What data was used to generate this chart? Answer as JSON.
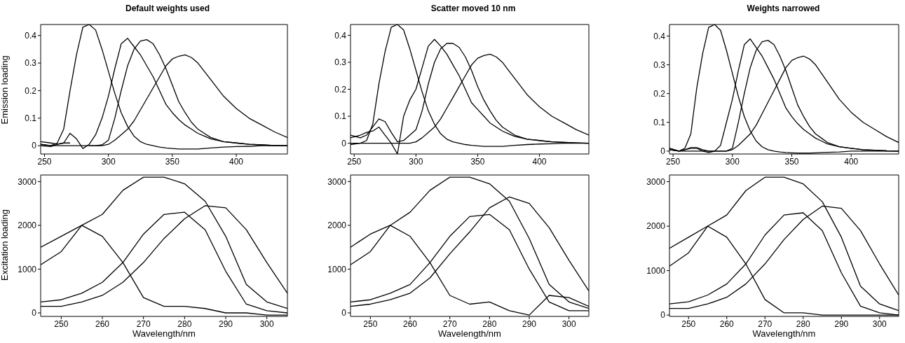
{
  "chart_data": [
    {
      "type": "line",
      "title": "Default weights used",
      "ylabel": "Emission loading",
      "x": [
        247,
        255,
        260,
        265,
        270,
        275,
        280,
        285,
        290,
        295,
        300,
        305,
        310,
        315,
        320,
        325,
        330,
        335,
        340,
        345,
        350,
        355,
        360,
        365,
        370,
        375,
        380,
        390,
        400,
        410,
        420,
        430,
        440
      ],
      "xlim": [
        247,
        440
      ],
      "ylim": [
        -0.03,
        0.44
      ],
      "xticks": [
        250,
        300,
        350,
        400
      ],
      "yticks": [
        0,
        0.1,
        0.2,
        0.3,
        0.4
      ],
      "series": [
        {
          "color": "#000000",
          "values": [
            0.005,
            0,
            0.01,
            0.06,
            0.2,
            0.33,
            0.43,
            0.44,
            0.42,
            0.35,
            0.27,
            0.19,
            0.12,
            0.07,
            0.035,
            0.015,
            0.005,
            0,
            -0.005,
            -0.008,
            -0.01,
            -0.012,
            -0.012,
            -0.012,
            -0.012,
            -0.01,
            -0.008,
            -0.005,
            -0.003,
            -0.002,
            0,
            0,
            0
          ]
        },
        {
          "color": "#000000",
          "values": [
            0.015,
            0.01,
            0.005,
            0.01,
            0.045,
            0.025,
            -0.01,
            0.005,
            0.04,
            0.1,
            0.18,
            0.28,
            0.37,
            0.39,
            0.36,
            0.33,
            0.29,
            0.25,
            0.2,
            0.15,
            0.12,
            0.095,
            0.075,
            0.06,
            0.045,
            0.035,
            0.025,
            0.015,
            0.01,
            0.005,
            0.003,
            0.001,
            0
          ]
        },
        {
          "color": "#000000",
          "values": [
            0,
            -0.003,
            0.005,
            0.01,
            0.01,
            null,
            null,
            0,
            0,
            0.003,
            0.02,
            0.1,
            0.2,
            0.29,
            0.35,
            0.38,
            0.385,
            0.37,
            0.33,
            0.28,
            0.22,
            0.16,
            0.12,
            0.085,
            0.06,
            0.045,
            0.03,
            0.015,
            0.01,
            0.005,
            0.003,
            0.001,
            0
          ]
        },
        {
          "color": "#000000",
          "values": [
            0.005,
            0,
            0,
            0,
            0,
            0,
            0,
            0,
            0,
            0,
            0.005,
            0.02,
            0.04,
            0.06,
            0.09,
            0.13,
            0.17,
            0.21,
            0.25,
            0.29,
            0.315,
            0.325,
            0.33,
            0.32,
            0.3,
            0.27,
            0.24,
            0.18,
            0.135,
            0.1,
            0.075,
            0.05,
            0.03
          ]
        }
      ]
    },
    {
      "type": "line",
      "title": "Scatter moved 10 nm",
      "x": [
        247,
        255,
        260,
        265,
        270,
        275,
        280,
        285,
        290,
        295,
        300,
        305,
        310,
        315,
        320,
        325,
        330,
        335,
        340,
        345,
        350,
        355,
        360,
        365,
        370,
        375,
        380,
        390,
        400,
        410,
        420,
        430,
        440
      ],
      "xlim": [
        247,
        440
      ],
      "ylim": [
        -0.04,
        0.44
      ],
      "xticks": [
        250,
        300,
        350,
        400
      ],
      "yticks": [
        0,
        0.1,
        0.2,
        0.3,
        0.4
      ],
      "series": [
        {
          "color": "#000000",
          "values": [
            -0.005,
            0,
            0.01,
            0.07,
            0.22,
            0.34,
            0.43,
            0.44,
            0.42,
            0.35,
            0.27,
            0.19,
            0.12,
            0.07,
            0.035,
            0.015,
            0.005,
            0,
            -0.005,
            -0.008,
            -0.01,
            -0.012,
            -0.012,
            -0.012,
            -0.012,
            -0.01,
            -0.008,
            -0.005,
            -0.003,
            -0.002,
            0,
            0,
            0
          ]
        },
        {
          "color": "#000000",
          "values": [
            0.02,
            0.03,
            0.04,
            0.045,
            0.06,
            0.03,
            0,
            -0.04,
            0.1,
            0.16,
            0.2,
            0.28,
            0.36,
            0.385,
            0.36,
            0.33,
            0.29,
            0.25,
            0.2,
            0.15,
            0.125,
            0.1,
            0.075,
            0.06,
            0.045,
            0.035,
            0.025,
            0.015,
            0.01,
            0.005,
            0.003,
            0.001,
            0
          ]
        },
        {
          "color": "#000000",
          "values": [
            0.03,
            0.02,
            0.03,
            0.06,
            0.09,
            0.08,
            0.04,
            0.005,
            0.01,
            0.03,
            0.05,
            0.12,
            0.22,
            0.3,
            0.35,
            0.37,
            0.37,
            0.355,
            0.32,
            0.27,
            0.21,
            0.16,
            0.12,
            0.085,
            0.06,
            0.045,
            0.03,
            0.015,
            0.01,
            0.005,
            0.003,
            0.001,
            0
          ]
        },
        {
          "color": "#000000",
          "values": [
            0,
            0,
            0,
            0,
            0,
            0,
            0,
            0,
            0,
            0,
            0.005,
            0.02,
            0.04,
            0.06,
            0.09,
            0.13,
            0.17,
            0.21,
            0.25,
            0.29,
            0.315,
            0.325,
            0.33,
            0.32,
            0.3,
            0.27,
            0.24,
            0.18,
            0.135,
            0.1,
            0.075,
            0.05,
            0.03
          ]
        }
      ]
    },
    {
      "type": "line",
      "title": "Weights narrowed",
      "x": [
        247,
        255,
        260,
        265,
        270,
        275,
        280,
        285,
        290,
        295,
        300,
        305,
        310,
        315,
        320,
        325,
        330,
        335,
        340,
        345,
        350,
        355,
        360,
        365,
        370,
        375,
        380,
        390,
        400,
        410,
        420,
        430,
        440
      ],
      "xlim": [
        247,
        440
      ],
      "ylim": [
        -0.01,
        0.44
      ],
      "xticks": [
        250,
        300,
        350,
        400
      ],
      "yticks": [
        0,
        0.1,
        0.2,
        0.3,
        0.4
      ],
      "series": [
        {
          "color": "#000000",
          "values": [
            0.005,
            0,
            0.01,
            0.06,
            0.22,
            0.34,
            0.43,
            0.44,
            0.42,
            0.35,
            0.27,
            0.19,
            0.12,
            0.07,
            0.035,
            0.015,
            0.005,
            0,
            -0.003,
            -0.005,
            -0.006,
            -0.007,
            -0.007,
            -0.007,
            -0.006,
            -0.005,
            -0.004,
            -0.003,
            0,
            0,
            0,
            0,
            0
          ]
        },
        {
          "color": "#000000",
          "values": [
            0.01,
            0,
            0.005,
            0.012,
            0.012,
            0.005,
            0,
            0,
            0.02,
            0.1,
            0.18,
            0.28,
            0.37,
            0.39,
            0.36,
            0.33,
            0.29,
            0.25,
            0.2,
            0.15,
            0.12,
            0.095,
            0.075,
            0.06,
            0.045,
            0.035,
            0.025,
            0.015,
            0.01,
            0.005,
            0.003,
            0.001,
            0
          ]
        },
        {
          "color": "#000000",
          "values": [
            0.01,
            0,
            0.005,
            0.01,
            0.01,
            0,
            -0.005,
            0,
            0,
            0,
            0.01,
            0.1,
            0.2,
            0.29,
            0.35,
            0.38,
            0.385,
            0.37,
            0.33,
            0.28,
            0.22,
            0.16,
            0.12,
            0.085,
            0.06,
            0.045,
            0.03,
            0.015,
            0.01,
            0.005,
            0.003,
            0.001,
            0
          ]
        },
        {
          "color": "#000000",
          "values": [
            0.005,
            0,
            0,
            0,
            0,
            0,
            0,
            0,
            0,
            0,
            0.005,
            0.02,
            0.04,
            0.06,
            0.09,
            0.13,
            0.17,
            0.21,
            0.25,
            0.29,
            0.315,
            0.325,
            0.33,
            0.32,
            0.3,
            0.27,
            0.24,
            0.18,
            0.135,
            0.1,
            0.075,
            0.05,
            0.03
          ]
        }
      ]
    },
    {
      "type": "line",
      "ylabel": "Excitation loading",
      "xlabel": "Wavelength/nm",
      "x": [
        245,
        250,
        255,
        260,
        265,
        270,
        275,
        280,
        285,
        290,
        295,
        300,
        305
      ],
      "xlim": [
        245,
        305
      ],
      "ylim": [
        -80,
        3150
      ],
      "xticks": [
        250,
        260,
        270,
        280,
        290,
        300
      ],
      "yticks": [
        0,
        1000,
        2000,
        3000
      ],
      "series": [
        {
          "color": "#000000",
          "values": [
            1500,
            1750,
            2000,
            2250,
            2800,
            3100,
            3100,
            2950,
            2550,
            1750,
            650,
            250,
            100
          ]
        },
        {
          "color": "#000000",
          "values": [
            1100,
            1400,
            2000,
            1750,
            1150,
            350,
            150,
            150,
            100,
            0,
            0,
            -50,
            -50
          ]
        },
        {
          "color": "#000000",
          "values": [
            250,
            300,
            450,
            700,
            1150,
            1800,
            2250,
            2300,
            1900,
            950,
            200,
            50,
            0
          ]
        },
        {
          "color": "#000000",
          "values": [
            150,
            150,
            250,
            400,
            700,
            1150,
            1700,
            2150,
            2450,
            2400,
            1900,
            1150,
            450
          ]
        }
      ]
    },
    {
      "type": "line",
      "xlabel": "Wavelength/nm",
      "x": [
        245,
        250,
        255,
        260,
        265,
        270,
        275,
        280,
        285,
        290,
        295,
        300,
        305
      ],
      "xlim": [
        245,
        305
      ],
      "ylim": [
        -80,
        3150
      ],
      "xticks": [
        250,
        260,
        270,
        280,
        290,
        300
      ],
      "yticks": [
        0,
        1000,
        2000,
        3000
      ],
      "series": [
        {
          "color": "#000000",
          "values": [
            1500,
            1800,
            2000,
            2300,
            2800,
            3100,
            3100,
            2950,
            2550,
            1700,
            650,
            250,
            100
          ]
        },
        {
          "color": "#000000",
          "values": [
            1100,
            1400,
            2000,
            1750,
            1150,
            400,
            200,
            250,
            50,
            -50,
            400,
            350,
            150
          ]
        },
        {
          "color": "#000000",
          "values": [
            250,
            300,
            450,
            650,
            1150,
            1750,
            2200,
            2250,
            1900,
            1000,
            250,
            50,
            50
          ]
        },
        {
          "color": "#000000",
          "values": [
            150,
            200,
            300,
            450,
            800,
            1350,
            1850,
            2400,
            2650,
            2500,
            1950,
            1200,
            500
          ]
        }
      ]
    },
    {
      "type": "line",
      "xlabel": "Wavelength/nm",
      "x": [
        245,
        250,
        255,
        260,
        265,
        270,
        275,
        280,
        285,
        290,
        295,
        300,
        305
      ],
      "xlim": [
        245,
        305
      ],
      "ylim": [
        -30,
        3150
      ],
      "xticks": [
        250,
        260,
        270,
        280,
        290,
        300
      ],
      "yticks": [
        0,
        1000,
        2000,
        3000
      ],
      "series": [
        {
          "color": "#000000",
          "values": [
            1500,
            1750,
            2000,
            2250,
            2800,
            3100,
            3100,
            2950,
            2550,
            1750,
            650,
            250,
            100
          ]
        },
        {
          "color": "#000000",
          "values": [
            1100,
            1400,
            2000,
            1750,
            1150,
            350,
            50,
            50,
            0,
            0,
            0,
            0,
            0
          ]
        },
        {
          "color": "#000000",
          "values": [
            250,
            300,
            450,
            700,
            1150,
            1800,
            2250,
            2300,
            1900,
            950,
            200,
            50,
            0
          ]
        },
        {
          "color": "#000000",
          "values": [
            150,
            150,
            250,
            400,
            700,
            1150,
            1700,
            2150,
            2450,
            2400,
            1900,
            1150,
            450
          ]
        }
      ]
    }
  ]
}
